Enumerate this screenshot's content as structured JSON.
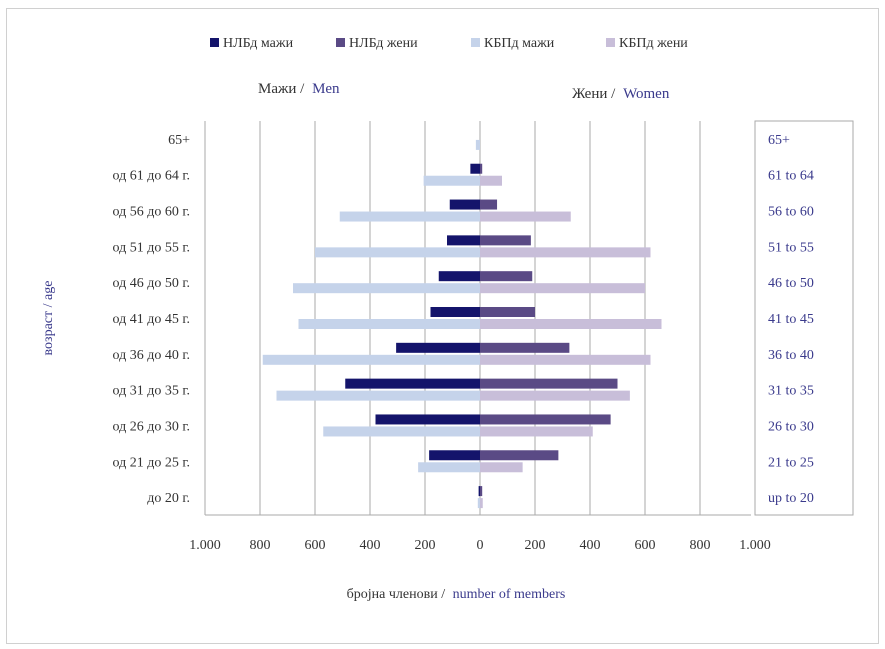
{
  "chart_data": {
    "type": "bar",
    "orientation": "horizontal",
    "layout": "population-pyramid",
    "categories": [
      "до 20 г.",
      "од 21 до 25 г.",
      "од 26 до 30 г.",
      "од 31 до 35 г.",
      "од 36 до 40 г.",
      "од 41 до 45 г.",
      "од 46 до 50 г.",
      "од 51 до 55 г.",
      "од 56 до 60 г.",
      "од 61 до 64 г.",
      "65+"
    ],
    "right_categories": [
      "up to 20",
      "21 to 25",
      "26 to 30",
      "31 to 35",
      "36 to 40",
      "41 to 45",
      "46 to 50",
      "51 to 55",
      "56 to 60",
      "61 to 64",
      "65+"
    ],
    "series": [
      {
        "name": "НЛБд мажи",
        "side": "left",
        "color": "#14146b",
        "values": [
          5,
          185,
          380,
          490,
          305,
          180,
          150,
          120,
          110,
          35,
          0
        ]
      },
      {
        "name": "НЛБд жени",
        "side": "right",
        "color": "#5a4a85",
        "values": [
          8,
          285,
          475,
          500,
          325,
          200,
          190,
          185,
          62,
          8,
          0
        ]
      },
      {
        "name": "КБПд мажи",
        "side": "left",
        "color": "#c5d3ea",
        "values": [
          8,
          225,
          570,
          740,
          790,
          660,
          680,
          600,
          510,
          205,
          15
        ]
      },
      {
        "name": "КБПд жени",
        "side": "right",
        "color": "#c8bed9",
        "values": [
          10,
          155,
          410,
          545,
          620,
          660,
          600,
          620,
          330,
          80,
          0
        ]
      }
    ],
    "x_ticks": [
      "1.000",
      "800",
      "600",
      "400",
      "200",
      "0",
      "200",
      "400",
      "600",
      "800",
      "1.000"
    ],
    "xlim": [
      -1000,
      1000
    ],
    "left_heading": {
      "part1": "Мажи /",
      "part2": "Men"
    },
    "right_heading": {
      "part1": "Жени /",
      "part2": "Women"
    },
    "ylabel": "возраст / age",
    "xlabel": {
      "part1": "бројна членови /",
      "part2": "number of members"
    },
    "legend_position": "top",
    "grid": true,
    "colors": {
      "english_text": "#3a3a8c",
      "text": "#333333",
      "grid": "#aaaaaa"
    }
  }
}
